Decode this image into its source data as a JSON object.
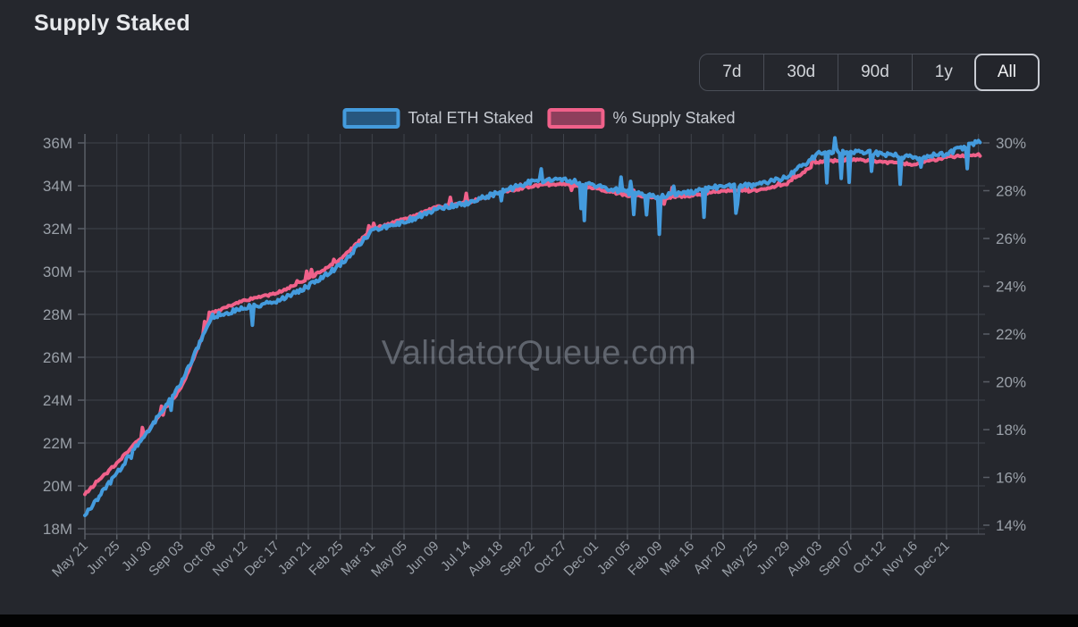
{
  "header": {
    "title": "Supply Staked"
  },
  "controls": {
    "ranges": [
      {
        "label": "7d",
        "active": false
      },
      {
        "label": "30d",
        "active": false
      },
      {
        "label": "90d",
        "active": false
      },
      {
        "label": "1y",
        "active": false
      },
      {
        "label": "All",
        "active": true
      }
    ]
  },
  "watermark": "ValidatorQueue.com",
  "colors": {
    "background": "#25272d",
    "grid": "#3f434b",
    "axis": "#5a5e66",
    "axis_text": "#9aa0a8",
    "blue_line": "#449bdd",
    "blue_fill": "#27577f",
    "pink_line": "#f0618a",
    "pink_fill": "#8e3f5c"
  },
  "chart_data": {
    "type": "line",
    "title": "Supply Staked",
    "legend_position": "top",
    "grid": true,
    "x_tick_rotation": -45,
    "categories": [
      "May 21",
      "Jun 25",
      "Jul 30",
      "Sep 03",
      "Oct 08",
      "Nov 12",
      "Dec 17",
      "Jan 21",
      "Feb 25",
      "Mar 31",
      "May 05",
      "Jun 09",
      "Jul 14",
      "Aug 18",
      "Sep 22",
      "Oct 27",
      "Dec 01",
      "Jan 05",
      "Feb 09",
      "Mar 16",
      "Apr 20",
      "May 25",
      "Jun 29",
      "Aug 03",
      "Sep 07",
      "Oct 12",
      "Nov 16",
      "Dec 21"
    ],
    "series": [
      {
        "name": "Total ETH Staked",
        "axis": "left",
        "unit": "M ETH",
        "color": "#449bdd",
        "values": [
          18.6,
          20.6,
          22.6,
          24.8,
          27.9,
          28.3,
          28.6,
          29.3,
          30.3,
          31.9,
          32.3,
          32.9,
          33.2,
          33.7,
          34.2,
          34.3,
          34.0,
          33.7,
          33.5,
          33.7,
          34.0,
          34.0,
          34.4,
          35.5,
          35.6,
          35.5,
          35.3,
          35.5
        ],
        "end_value": 36.1
      },
      {
        "name": "% Supply Staked",
        "axis": "right",
        "unit": "%",
        "color": "#f0618a",
        "values": [
          15.3,
          16.6,
          18.0,
          19.7,
          22.9,
          23.4,
          23.7,
          24.3,
          25.1,
          26.4,
          26.8,
          27.3,
          27.5,
          27.9,
          28.2,
          28.3,
          28.1,
          27.8,
          27.7,
          27.8,
          28.0,
          28.0,
          28.3,
          29.2,
          29.3,
          29.2,
          29.1,
          29.4
        ],
        "end_value": 29.5
      }
    ],
    "y_left": {
      "min": 18,
      "max": 36,
      "tick_step": 2,
      "unit": "M",
      "labels": [
        "36M",
        "34M",
        "32M",
        "30M",
        "28M",
        "26M",
        "24M",
        "22M",
        "20M",
        "18M"
      ]
    },
    "y_right": {
      "min": 14,
      "max": 30,
      "tick_step": 2,
      "unit": "%",
      "labels": [
        "30%",
        "28%",
        "26%",
        "24%",
        "22%",
        "20%",
        "18%",
        "16%",
        "14%"
      ]
    }
  }
}
